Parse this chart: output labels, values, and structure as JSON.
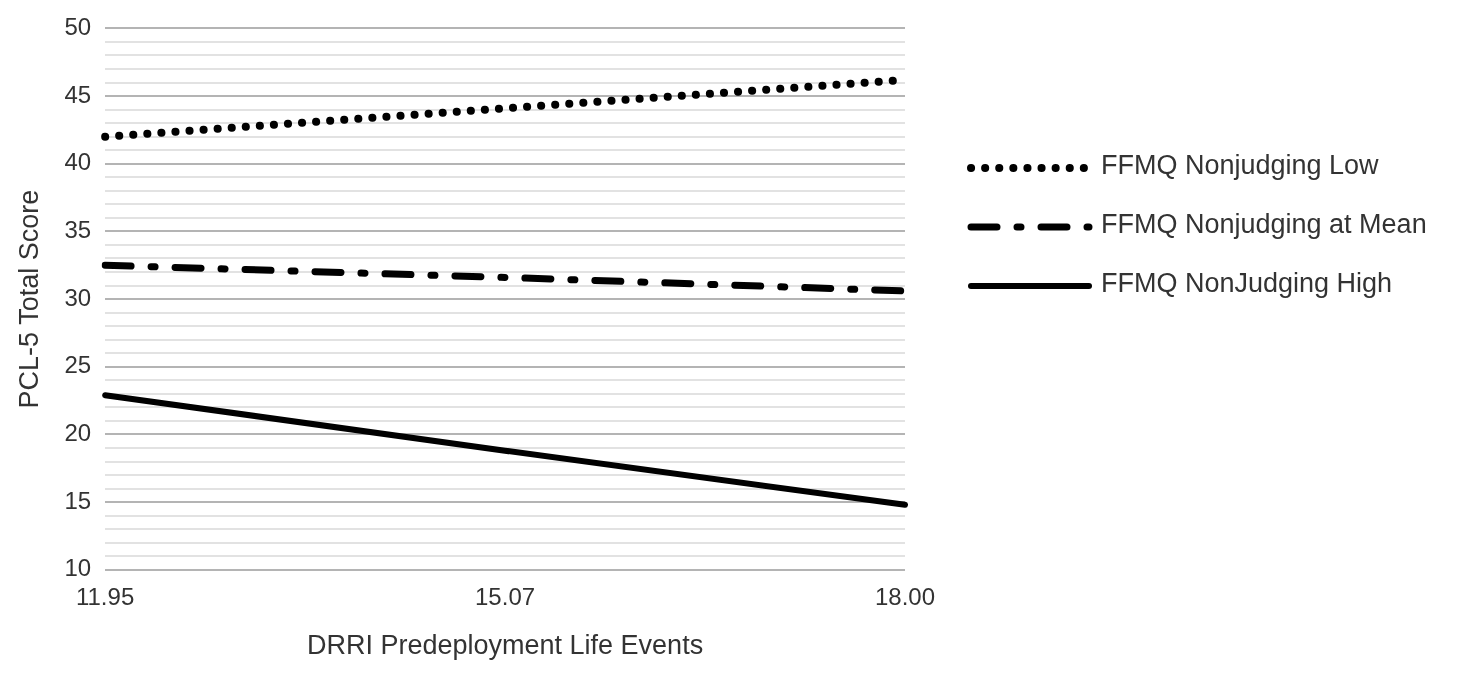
{
  "chart_data": {
    "type": "line",
    "xlabel": "DRRI Predeployment Life Events",
    "ylabel": "PCL-5 Total Score",
    "categories": [
      "11.95",
      "15.07",
      "18.00"
    ],
    "series": [
      {
        "name": "FFMQ Nonjudging Low",
        "color": "#000000",
        "line_style": "dotted",
        "values": [
          42.0,
          44.1,
          46.2
        ]
      },
      {
        "name": "FFMQ Nonjudging at Mean",
        "color": "#000000",
        "line_style": "dashed",
        "values": [
          32.5,
          31.6,
          30.6
        ]
      },
      {
        "name": "FFMQ NonJudging High",
        "color": "#000000",
        "line_style": "solid",
        "values": [
          22.9,
          18.8,
          14.8
        ]
      }
    ],
    "ylim": [
      10,
      50
    ],
    "yticks": [
      10,
      {
        "value": 11,
        "label": null
      },
      {
        "value": 12,
        "label": null
      },
      {
        "value": 13,
        "label": null
      },
      {
        "value": 14,
        "label": null
      },
      15,
      {
        "value": 16,
        "label": null
      },
      {
        "value": 17,
        "label": null
      },
      {
        "value": 18,
        "label": null
      },
      {
        "value": 19,
        "label": null
      },
      20,
      {
        "value": 21,
        "label": null
      },
      {
        "value": 22,
        "label": null
      },
      {
        "value": 23,
        "label": null
      },
      {
        "value": 24,
        "label": null
      },
      25,
      {
        "value": 26,
        "label": null
      },
      {
        "value": 27,
        "label": null
      },
      {
        "value": 28,
        "label": null
      },
      {
        "value": 29,
        "label": null
      },
      30,
      {
        "value": 31,
        "label": null
      },
      {
        "value": 32,
        "label": null
      },
      {
        "value": 33,
        "label": null
      },
      {
        "value": 34,
        "label": null
      },
      35,
      {
        "value": 36,
        "label": null
      },
      {
        "value": 37,
        "label": null
      },
      {
        "value": 38,
        "label": null
      },
      {
        "value": 39,
        "label": null
      },
      40,
      {
        "value": 41,
        "label": null
      },
      {
        "value": 42,
        "label": null
      },
      {
        "value": 43,
        "label": null
      },
      {
        "value": 44,
        "label": null
      },
      45,
      {
        "value": 46,
        "label": null
      },
      {
        "value": 47,
        "label": null
      },
      {
        "value": 48,
        "label": null
      },
      {
        "value": 49,
        "label": null
      },
      50
    ],
    "grid": "y",
    "legend": "right",
    "marker": "none"
  }
}
